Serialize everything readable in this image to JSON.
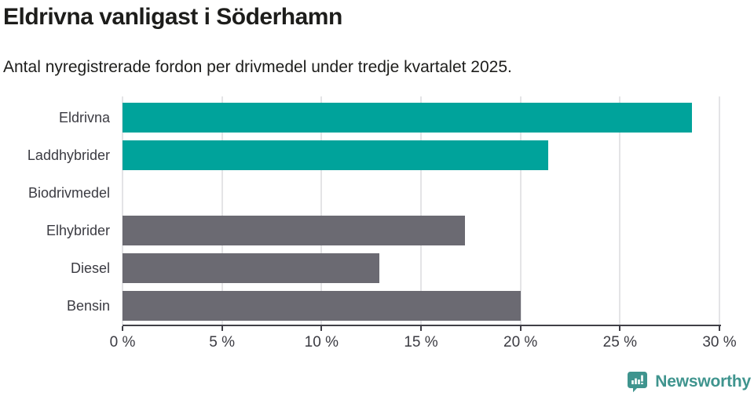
{
  "header": {
    "title": "Eldrivna vanligast i Söderhamn",
    "subtitle": "Antal nyregistrerade fordon per drivmedel under tredje kvartalet 2025."
  },
  "chart_data": {
    "type": "bar",
    "orientation": "horizontal",
    "title": "Eldrivna vanligast i Söderhamn",
    "subtitle": "Antal nyregistrerade fordon per drivmedel under tredje kvartalet 2025.",
    "categories": [
      "Eldrivna",
      "Laddhybrider",
      "Biodrivmedel",
      "Elhybrider",
      "Diesel",
      "Bensin"
    ],
    "values": [
      28.6,
      21.4,
      0,
      17.2,
      12.9,
      20.0
    ],
    "unit": "%",
    "bar_colors": [
      "#00a39b",
      "#00a39b",
      "#6b6a72",
      "#6b6a72",
      "#6b6a72",
      "#6b6a72"
    ],
    "xlim": [
      0,
      30
    ],
    "x_ticks": [
      {
        "value": 0,
        "label": "0 %"
      },
      {
        "value": 5,
        "label": "5 %"
      },
      {
        "value": 10,
        "label": "10 %"
      },
      {
        "value": 15,
        "label": "15 %"
      },
      {
        "value": 20,
        "label": "20 %"
      },
      {
        "value": 25,
        "label": "25 %"
      },
      {
        "value": 30,
        "label": "30 %"
      }
    ],
    "grid": "vertical",
    "legend": "none",
    "value_labels": "none"
  },
  "colors": {
    "accent_teal": "#00a39b",
    "neutral_gray": "#6b6a72",
    "axis": "#403f47",
    "gridline": "#e4e4e6",
    "text_dark": "#1d1d1b",
    "text_label": "#3b3b42",
    "brand": "#3f948e",
    "background": "#ffffff"
  },
  "footer": {
    "brand": "Newsworthy",
    "logo_icon": "bar-chart-speech-bubble-icon"
  }
}
